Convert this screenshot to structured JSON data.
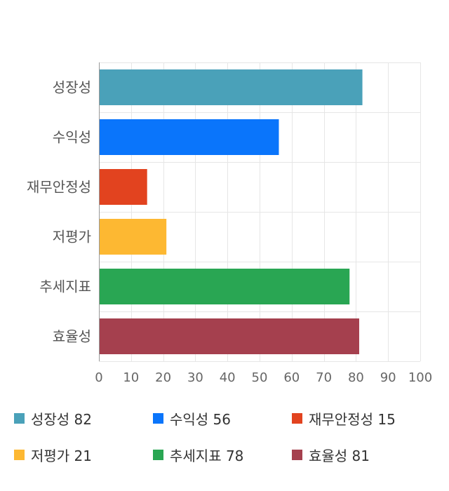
{
  "chart_data": {
    "type": "bar",
    "orientation": "horizontal",
    "categories": [
      "성장성",
      "수익성",
      "재무안정성",
      "저평가",
      "추세지표",
      "효율성"
    ],
    "values": [
      82,
      56,
      15,
      21,
      78,
      81
    ],
    "colors": [
      "#4aa1b9",
      "#0a75fb",
      "#e2431f",
      "#fdb832",
      "#29a653",
      "#a5404e"
    ],
    "xlim": [
      0,
      100
    ],
    "xticks": [
      "0",
      "10",
      "20",
      "30",
      "40",
      "50",
      "60",
      "70",
      "80",
      "90",
      "100"
    ],
    "grid": true,
    "legend_position": "bottom"
  },
  "legend": [
    {
      "label": "성장성 82",
      "color": "#4aa1b9"
    },
    {
      "label": "수익성 56",
      "color": "#0a75fb"
    },
    {
      "label": "재무안정성 15",
      "color": "#e2431f"
    },
    {
      "label": "저평가 21",
      "color": "#fdb832"
    },
    {
      "label": "추세지표 78",
      "color": "#29a653"
    },
    {
      "label": "효율성 81",
      "color": "#a5404e"
    }
  ]
}
